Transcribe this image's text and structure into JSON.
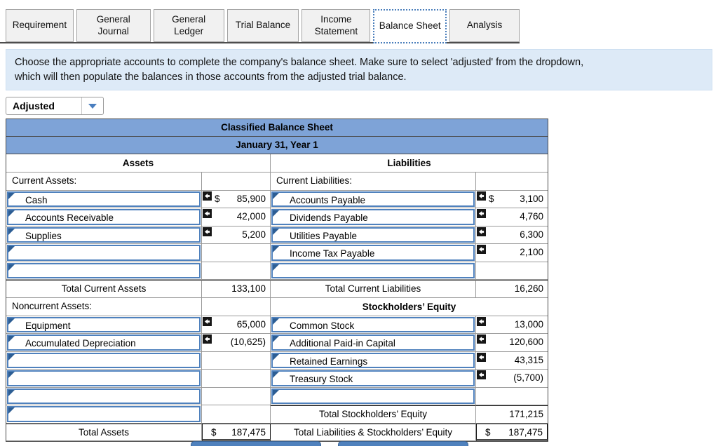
{
  "tabs": [
    {
      "label": "Requirement",
      "active": false
    },
    {
      "label": "General Journal",
      "active": false
    },
    {
      "label": "General Ledger",
      "active": false
    },
    {
      "label": "Trial Balance",
      "active": false
    },
    {
      "label": "Income Statement",
      "active": false
    },
    {
      "label": "Balance Sheet",
      "active": true
    },
    {
      "label": "Analysis",
      "active": false
    }
  ],
  "instruction": {
    "line1": "Choose the appropriate accounts to complete the company's balance sheet. Make sure to select 'adjusted' from the dropdown,",
    "line2": "which will then populate the balances in those accounts from the adjusted trial balance."
  },
  "dropdown": {
    "value": "Adjusted"
  },
  "balance_sheet": {
    "title": "Classified Balance Sheet",
    "date": "January 31, Year 1",
    "assets_header": "Assets",
    "liabilities_header": "Liabilities",
    "rows": [
      {
        "left": {
          "type": "section",
          "label": "Current Assets:"
        },
        "right": {
          "type": "section",
          "label": "Current Liabilities:"
        }
      },
      {
        "left": {
          "type": "input",
          "label": "Cash",
          "amount": "85,900",
          "dollar": true,
          "icon": true
        },
        "right": {
          "type": "input",
          "label": "Accounts Payable",
          "amount": "3,100",
          "dollar": true,
          "icon": true
        }
      },
      {
        "left": {
          "type": "input",
          "label": "Accounts Receivable",
          "amount": "42,000",
          "icon": true
        },
        "right": {
          "type": "input",
          "label": "Dividends Payable",
          "amount": "4,760",
          "icon": true
        }
      },
      {
        "left": {
          "type": "input",
          "label": "Supplies",
          "amount": "5,200",
          "icon": true
        },
        "right": {
          "type": "input",
          "label": "Utilities Payable",
          "amount": "6,300",
          "icon": true
        }
      },
      {
        "left": {
          "type": "input",
          "label": "",
          "amount": ""
        },
        "right": {
          "type": "input",
          "label": "Income Tax Payable",
          "amount": "2,100",
          "icon": true
        }
      },
      {
        "left": {
          "type": "input",
          "label": "",
          "amount": ""
        },
        "right": {
          "type": "input",
          "label": "",
          "amount": ""
        }
      },
      {
        "left": {
          "type": "total",
          "label": "Total Current Assets",
          "amount": "133,100",
          "dark_top": true
        },
        "right": {
          "type": "total",
          "label": "Total Current Liabilities",
          "amount": "16,260",
          "dark_top": true
        }
      },
      {
        "left": {
          "type": "section",
          "label": "Noncurrent Assets:"
        },
        "right": {
          "type": "header",
          "label": "Stockholders’ Equity"
        }
      },
      {
        "left": {
          "type": "input",
          "label": "Equipment",
          "amount": "65,000",
          "icon": true
        },
        "right": {
          "type": "input",
          "label": "Common Stock",
          "amount": "13,000",
          "icon": true
        }
      },
      {
        "left": {
          "type": "input",
          "label": "Accumulated Depreciation",
          "amount": "(10,625)",
          "icon": true
        },
        "right": {
          "type": "input",
          "label": "Additional Paid-in Capital",
          "amount": "120,600",
          "icon": true
        }
      },
      {
        "left": {
          "type": "input",
          "label": "",
          "amount": ""
        },
        "right": {
          "type": "input",
          "label": "Retained Earnings",
          "amount": "43,315",
          "icon": true
        }
      },
      {
        "left": {
          "type": "input",
          "label": "",
          "amount": ""
        },
        "right": {
          "type": "input",
          "label": "Treasury Stock",
          "amount": "(5,700)",
          "icon": true
        }
      },
      {
        "left": {
          "type": "input",
          "label": "",
          "amount": ""
        },
        "right": {
          "type": "input",
          "label": "",
          "amount": ""
        }
      },
      {
        "left": {
          "type": "input",
          "label": "",
          "amount": ""
        },
        "right": {
          "type": "total",
          "label": "Total Stockholders’ Equity",
          "amount": "171,215",
          "dark_top": true
        }
      },
      {
        "left": {
          "type": "grand",
          "label": "Total Assets",
          "amount": "187,475",
          "dollar": true,
          "dark_top": true
        },
        "right": {
          "type": "grand",
          "label": "Total Liabilities & Stockholders’ Equity",
          "amount": "187,475",
          "dollar": true,
          "dark_top": true
        }
      }
    ]
  },
  "colors": {
    "accent_blue": "#4f81bd",
    "header_blue": "#7ea3d7",
    "banner_blue": "#ddeaf7",
    "triangle_blue": "#2d5e94"
  }
}
